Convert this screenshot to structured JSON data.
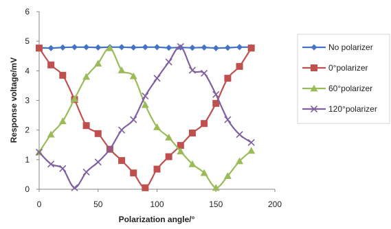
{
  "chart_data": {
    "type": "line",
    "title": "",
    "xlabel": "Polarization angle/°",
    "ylabel": "Response voltage/mV",
    "xlim": [
      0,
      200
    ],
    "ylim": [
      0,
      6
    ],
    "x_ticks": [
      0,
      50,
      100,
      150,
      200
    ],
    "y_ticks": [
      0,
      1,
      2,
      3,
      4,
      5,
      6
    ],
    "grid": false,
    "legend_position": "right",
    "x": [
      0,
      10,
      20,
      30,
      40,
      50,
      60,
      70,
      80,
      90,
      100,
      110,
      120,
      130,
      140,
      150,
      160,
      170,
      180
    ],
    "series": [
      {
        "name": "No polarizer",
        "color": "#4472C4",
        "marker": "diamond",
        "values": [
          4.78,
          4.77,
          4.79,
          4.8,
          4.8,
          4.79,
          4.8,
          4.8,
          4.79,
          4.8,
          4.8,
          4.78,
          4.79,
          4.78,
          4.79,
          4.77,
          4.78,
          4.8,
          4.8
        ]
      },
      {
        "name": "0°polarizer",
        "color": "#C0504D",
        "marker": "square",
        "values": [
          4.77,
          4.2,
          3.85,
          3.03,
          2.15,
          1.88,
          1.35,
          0.97,
          0.55,
          0.05,
          0.68,
          1.1,
          1.48,
          1.9,
          2.22,
          2.9,
          3.75,
          4.15,
          4.77
        ]
      },
      {
        "name": "60°polarizer",
        "color": "#9BBB59",
        "marker": "triangle",
        "values": [
          1.25,
          1.85,
          2.3,
          3.05,
          3.8,
          4.25,
          4.77,
          4.02,
          3.82,
          2.85,
          2.1,
          1.75,
          1.28,
          0.85,
          0.55,
          0.05,
          0.45,
          0.95,
          1.3
        ]
      },
      {
        "name": "120°polarizer",
        "color": "#7F5FA0",
        "marker": "x",
        "values": [
          1.25,
          0.85,
          0.7,
          0.05,
          0.58,
          0.92,
          1.35,
          2.0,
          2.35,
          3.15,
          3.75,
          4.3,
          4.82,
          4.02,
          3.92,
          3.2,
          2.35,
          1.85,
          1.58
        ]
      }
    ]
  }
}
